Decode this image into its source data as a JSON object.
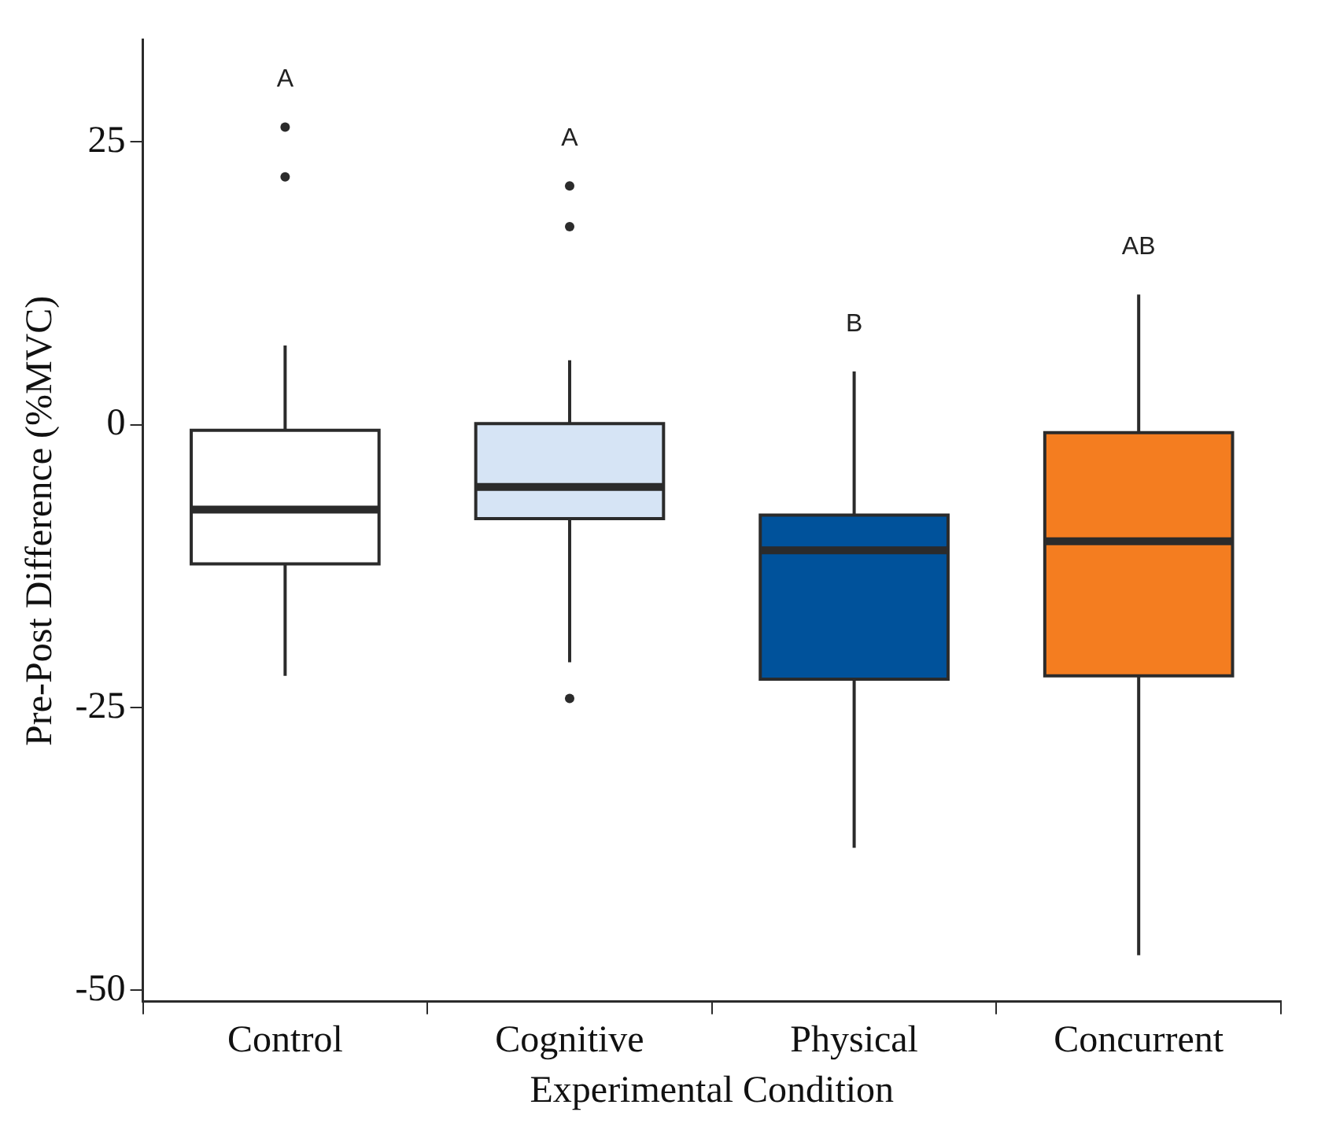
{
  "chart_data": {
    "type": "box",
    "xlabel": "Experimental Condition",
    "ylabel": "Pre-Post Difference (%MVC)",
    "categories": [
      "Control",
      "Cognitive",
      "Physical",
      "Concurrent"
    ],
    "colors": [
      "#ffffff",
      "#d6e4f5",
      "#00529b",
      "#f47d20"
    ],
    "boxes": [
      {
        "low": -22.2,
        "q1": -12.3,
        "median": -7.5,
        "q3": -0.5,
        "high": 7,
        "outliers": [
          26.3,
          21.9
        ]
      },
      {
        "low": -21,
        "q1": -8.3,
        "median": -5.5,
        "q3": 0.1,
        "high": 5.7,
        "outliers": [
          21.1,
          17.5,
          -24.2
        ]
      },
      {
        "low": -37.4,
        "q1": -22.5,
        "median": -11.1,
        "q3": -8,
        "high": 4.7
      },
      {
        "low": -46.9,
        "q1": -22.2,
        "median": -10.3,
        "q3": -0.7,
        "high": 11.5
      }
    ],
    "ylim": [
      -51,
      34
    ],
    "yticks": [
      -50,
      -25,
      0,
      25
    ],
    "grid": false,
    "legend": false,
    "annotations": [
      "A",
      "A",
      "B",
      "AB"
    ]
  }
}
